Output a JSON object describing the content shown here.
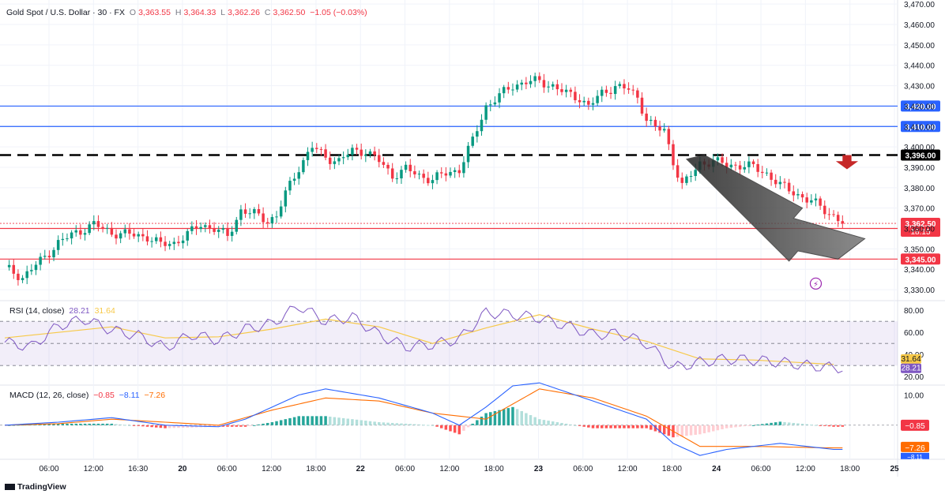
{
  "header": {
    "symbol": "Gold Spot / U.S. Dollar · 30 · FX",
    "o_label": "O",
    "o_value": "3,363.55",
    "h_label": "H",
    "h_value": "3,364.33",
    "l_label": "L",
    "l_value": "3,362.26",
    "c_label": "C",
    "c_value": "3,362.50",
    "change": "−1.05 (−0.03%)"
  },
  "rsi_legend": {
    "name": "RSI (14, close)",
    "v1": "28.21",
    "v2": "31.64"
  },
  "macd_legend": {
    "name": "MACD (12, 26, close)",
    "v1": "−0.85",
    "v2": "−8.11",
    "v3": "−7.26"
  },
  "footer": {
    "brand": "TradingView"
  },
  "colors": {
    "up": "#089981",
    "down": "#f23645",
    "blue_line": "#2962ff",
    "red_line": "#f23645",
    "rsi": "#7e57c2",
    "rsi_ma": "#f7c948",
    "macd": "#2962ff",
    "signal": "#ff6d00"
  },
  "chart_data": {
    "type": "candlestick",
    "price_axis": {
      "range": [
        3325,
        3472
      ],
      "ticks": [
        "3,470.00",
        "3,460.00",
        "3,450.00",
        "3,440.00",
        "3,430.00",
        "3,420.00",
        "3,410.00",
        "3,400.00",
        "3,390.00",
        "3,380.00",
        "3,370.00",
        "3,360.00",
        "3,350.00",
        "3,340.00",
        "3,330.00"
      ]
    },
    "time_axis": [
      "06:00",
      "12:00",
      "16:30",
      "20",
      "06:00",
      "12:00",
      "18:00",
      "22",
      "06:00",
      "12:00",
      "18:00",
      "23",
      "06:00",
      "12:00",
      "18:00",
      "24",
      "06:00",
      "12:00",
      "18:00",
      "25"
    ],
    "levels": [
      {
        "price": 3420,
        "label": "3,420.00",
        "color": "#2962ff",
        "style": "solid"
      },
      {
        "price": 3410,
        "label": "3,410.00",
        "color": "#2962ff",
        "style": "solid"
      },
      {
        "price": 3396,
        "label": "3,396.00",
        "color": "#000000",
        "style": "dashed"
      },
      {
        "price": 3360,
        "label": "3,360.00",
        "color": "#f23645",
        "style": "solid"
      },
      {
        "price": 3345,
        "label": "3,345.00",
        "color": "#f23645",
        "style": "solid"
      }
    ],
    "last_price": {
      "price": 3362.5,
      "label": "3,362.50",
      "countdown": "18:15"
    },
    "path_points": [
      [
        0,
        3341
      ],
      [
        4,
        3336
      ],
      [
        8,
        3344
      ],
      [
        12,
        3353
      ],
      [
        16,
        3358
      ],
      [
        20,
        3362
      ],
      [
        24,
        3358
      ],
      [
        28,
        3357
      ],
      [
        32,
        3356
      ],
      [
        35,
        3352
      ],
      [
        38,
        3353
      ],
      [
        41,
        3357
      ],
      [
        44,
        3362
      ],
      [
        47,
        3360
      ],
      [
        50,
        3356
      ],
      [
        53,
        3369
      ],
      [
        56,
        3367
      ],
      [
        59,
        3364
      ],
      [
        61,
        3366
      ],
      [
        63,
        3377
      ],
      [
        66,
        3390
      ],
      [
        69,
        3400
      ],
      [
        72,
        3395
      ],
      [
        75,
        3393
      ],
      [
        78,
        3398
      ],
      [
        81,
        3398
      ],
      [
        84,
        3393
      ],
      [
        87,
        3386
      ],
      [
        90,
        3389
      ],
      [
        93,
        3386
      ],
      [
        96,
        3384
      ],
      [
        99,
        3387
      ],
      [
        102,
        3389
      ],
      [
        105,
        3403
      ],
      [
        108,
        3420
      ],
      [
        111,
        3425
      ],
      [
        114,
        3430
      ],
      [
        117,
        3432
      ],
      [
        120,
        3432
      ],
      [
        123,
        3430
      ],
      [
        126,
        3426
      ],
      [
        129,
        3424
      ],
      [
        131,
        3420
      ],
      [
        134,
        3426
      ],
      [
        137,
        3430
      ],
      [
        140,
        3428
      ],
      [
        142,
        3424
      ],
      [
        144,
        3414
      ],
      [
        146,
        3409
      ],
      [
        148,
        3408
      ],
      [
        150,
        3393
      ],
      [
        152,
        3381
      ],
      [
        154,
        3386
      ],
      [
        156,
        3392
      ],
      [
        159,
        3393
      ],
      [
        162,
        3391
      ],
      [
        165,
        3391
      ],
      [
        168,
        3390
      ],
      [
        171,
        3387
      ],
      [
        174,
        3381
      ],
      [
        177,
        3378
      ],
      [
        180,
        3374
      ],
      [
        183,
        3371
      ],
      [
        186,
        3366
      ],
      [
        188,
        3362.5
      ]
    ],
    "rsi": {
      "name": "RSI (14, close)",
      "range": [
        13,
        88
      ],
      "ticks": [
        "80.00",
        "60.00",
        "40.00",
        "20.00"
      ],
      "levels": [
        70,
        50,
        30
      ],
      "last": "28.21",
      "ma_last": "31.64",
      "points": [
        [
          0,
          51
        ],
        [
          6,
          47
        ],
        [
          12,
          66
        ],
        [
          18,
          72
        ],
        [
          24,
          62
        ],
        [
          30,
          57
        ],
        [
          36,
          46
        ],
        [
          42,
          58
        ],
        [
          48,
          53
        ],
        [
          54,
          63
        ],
        [
          60,
          68
        ],
        [
          66,
          84
        ],
        [
          72,
          70
        ],
        [
          78,
          74
        ],
        [
          84,
          58
        ],
        [
          90,
          47
        ],
        [
          96,
          49
        ],
        [
          102,
          54
        ],
        [
          108,
          78
        ],
        [
          114,
          76
        ],
        [
          120,
          73
        ],
        [
          126,
          66
        ],
        [
          132,
          58
        ],
        [
          138,
          59
        ],
        [
          144,
          50
        ],
        [
          150,
          28
        ],
        [
          156,
          33
        ],
        [
          162,
          36
        ],
        [
          168,
          35
        ],
        [
          174,
          33
        ],
        [
          180,
          30
        ],
        [
          186,
          28
        ]
      ],
      "ma_points": [
        [
          0,
          55
        ],
        [
          12,
          60
        ],
        [
          24,
          65
        ],
        [
          36,
          55
        ],
        [
          48,
          56
        ],
        [
          60,
          63
        ],
        [
          72,
          72
        ],
        [
          84,
          65
        ],
        [
          96,
          50
        ],
        [
          108,
          64
        ],
        [
          120,
          76
        ],
        [
          132,
          63
        ],
        [
          144,
          52
        ],
        [
          156,
          36
        ],
        [
          168,
          35
        ],
        [
          186,
          31
        ]
      ]
    },
    "macd": {
      "name": "MACD (12, 26, close)",
      "range": [
        -11,
        13
      ],
      "ticks": [
        "10.00"
      ],
      "zero_label": "−0.85",
      "signal_label": "−7.26",
      "macd_label": "−8.11",
      "macd_points": [
        [
          0,
          0
        ],
        [
          12,
          1
        ],
        [
          24,
          2.5
        ],
        [
          36,
          0
        ],
        [
          48,
          -0.5
        ],
        [
          54,
          2
        ],
        [
          66,
          10
        ],
        [
          72,
          12
        ],
        [
          84,
          9
        ],
        [
          96,
          4
        ],
        [
          102,
          0
        ],
        [
          108,
          6
        ],
        [
          114,
          13
        ],
        [
          120,
          14
        ],
        [
          132,
          8
        ],
        [
          144,
          2
        ],
        [
          150,
          -6
        ],
        [
          156,
          -10
        ],
        [
          162,
          -8
        ],
        [
          174,
          -6
        ],
        [
          186,
          -8
        ]
      ],
      "signal_points": [
        [
          0,
          0
        ],
        [
          12,
          0.5
        ],
        [
          24,
          2
        ],
        [
          36,
          1
        ],
        [
          48,
          0
        ],
        [
          60,
          5
        ],
        [
          72,
          9
        ],
        [
          84,
          8
        ],
        [
          96,
          4
        ],
        [
          108,
          2
        ],
        [
          120,
          12
        ],
        [
          132,
          9
        ],
        [
          144,
          3
        ],
        [
          150,
          -2
        ],
        [
          156,
          -7
        ],
        [
          168,
          -7
        ],
        [
          186,
          -7.5
        ]
      ]
    }
  }
}
